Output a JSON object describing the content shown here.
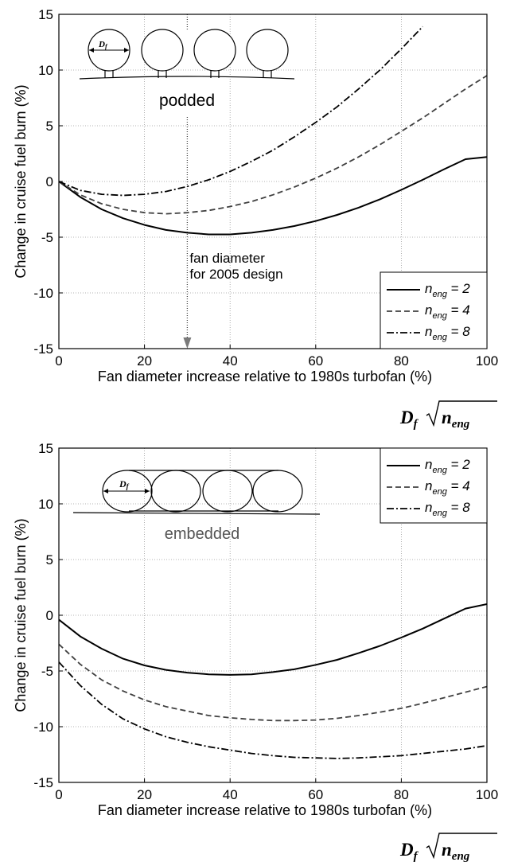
{
  "chart_data": [
    {
      "type": "line",
      "panel_label": "podded",
      "xlabel": "Fan diameter increase relative to 1980s turbofan (%)",
      "ylabel": "Change in cruise fuel burn (%)",
      "xlim": [
        0,
        100
      ],
      "ylim": [
        -15,
        15
      ],
      "x_ticks": [
        "0",
        "20",
        "40",
        "60",
        "80",
        "100"
      ],
      "y_ticks": [
        "15",
        "10",
        "5",
        "0",
        "-5",
        "-10",
        "-15"
      ],
      "grid": true,
      "legend_position": "bottom-right",
      "annotation": {
        "line1": "fan diameter",
        "line2": "for 2005 design",
        "x": 30
      },
      "series": [
        {
          "name": "n_eng = 2",
          "style": "solid",
          "color": "#000000",
          "x": [
            0,
            5,
            10,
            15,
            20,
            25,
            30,
            35,
            40,
            45,
            50,
            55,
            60,
            65,
            70,
            75,
            80,
            85,
            90,
            95,
            100
          ],
          "y": [
            0,
            -1.4,
            -2.5,
            -3.3,
            -3.9,
            -4.35,
            -4.6,
            -4.75,
            -4.75,
            -4.6,
            -4.35,
            -4.0,
            -3.55,
            -3.0,
            -2.35,
            -1.6,
            -0.75,
            0.15,
            1.1,
            2.0,
            2.2
          ]
        },
        {
          "name": "n_eng = 4",
          "style": "dashed",
          "color": "#404040",
          "x": [
            0,
            5,
            10,
            15,
            20,
            25,
            30,
            35,
            40,
            45,
            50,
            55,
            60,
            65,
            70,
            75,
            80,
            85,
            90,
            95,
            100
          ],
          "y": [
            0,
            -1.2,
            -2.0,
            -2.5,
            -2.8,
            -2.9,
            -2.8,
            -2.6,
            -2.25,
            -1.8,
            -1.2,
            -0.5,
            0.3,
            1.2,
            2.2,
            3.3,
            4.5,
            5.7,
            7.0,
            8.3,
            9.5
          ]
        },
        {
          "name": "n_eng = 8",
          "style": "dashdot",
          "color": "#000000",
          "x": [
            0,
            5,
            10,
            15,
            20,
            25,
            30,
            35,
            40,
            45,
            50,
            55,
            60,
            65,
            70,
            75,
            80,
            85
          ],
          "y": [
            0,
            -0.8,
            -1.15,
            -1.25,
            -1.15,
            -0.9,
            -0.45,
            0.15,
            0.9,
            1.8,
            2.8,
            4.0,
            5.3,
            6.7,
            8.3,
            10.0,
            11.9,
            13.9
          ]
        }
      ]
    },
    {
      "type": "line",
      "panel_label": "embedded",
      "xlabel": "Fan diameter increase relative to 1980s turbofan (%)",
      "ylabel": "Change in cruise fuel burn (%)",
      "xlim": [
        0,
        100
      ],
      "ylim": [
        -15,
        15
      ],
      "x_ticks": [
        "0",
        "20",
        "40",
        "60",
        "80",
        "100"
      ],
      "y_ticks": [
        "15",
        "10",
        "5",
        "0",
        "-5",
        "-10",
        "-15"
      ],
      "grid": true,
      "legend_position": "top-right",
      "series": [
        {
          "name": "n_eng = 2",
          "style": "solid",
          "color": "#000000",
          "x": [
            0,
            5,
            10,
            15,
            20,
            25,
            30,
            35,
            40,
            45,
            50,
            55,
            60,
            65,
            70,
            75,
            80,
            85,
            90,
            95,
            100
          ],
          "y": [
            -0.4,
            -1.9,
            -3.0,
            -3.9,
            -4.5,
            -4.9,
            -5.15,
            -5.3,
            -5.35,
            -5.3,
            -5.1,
            -4.85,
            -4.45,
            -4.0,
            -3.4,
            -2.75,
            -2.0,
            -1.2,
            -0.3,
            0.6,
            1.0
          ]
        },
        {
          "name": "n_eng = 4",
          "style": "dashed",
          "color": "#404040",
          "x": [
            0,
            5,
            10,
            15,
            20,
            25,
            30,
            35,
            40,
            45,
            50,
            55,
            60,
            65,
            70,
            75,
            80,
            85,
            90,
            95,
            100
          ],
          "y": [
            -2.6,
            -4.4,
            -5.8,
            -6.8,
            -7.6,
            -8.2,
            -8.6,
            -9.0,
            -9.2,
            -9.35,
            -9.45,
            -9.45,
            -9.4,
            -9.25,
            -9.0,
            -8.7,
            -8.35,
            -7.9,
            -7.4,
            -6.9,
            -6.4
          ]
        },
        {
          "name": "n_eng = 8",
          "style": "dashdot",
          "color": "#000000",
          "x": [
            0,
            5,
            10,
            15,
            20,
            25,
            30,
            35,
            40,
            45,
            50,
            55,
            60,
            65,
            70,
            75,
            80,
            85,
            90,
            95,
            100
          ],
          "y": [
            -4.2,
            -6.3,
            -8.0,
            -9.3,
            -10.2,
            -10.9,
            -11.4,
            -11.8,
            -12.1,
            -12.4,
            -12.6,
            -12.75,
            -12.8,
            -12.85,
            -12.8,
            -12.7,
            -12.6,
            -12.4,
            -12.2,
            -12.0,
            -11.7
          ]
        }
      ]
    }
  ],
  "legend_labels": {
    "n": "n",
    "sub": "eng",
    "eq2": " = 2",
    "eq4": " = 4",
    "eq8": " = 8"
  },
  "formula": {
    "D": "D",
    "f": "f",
    "n": "n",
    "eng": "eng"
  },
  "schematic": {
    "label": "D",
    "sub": "f"
  }
}
